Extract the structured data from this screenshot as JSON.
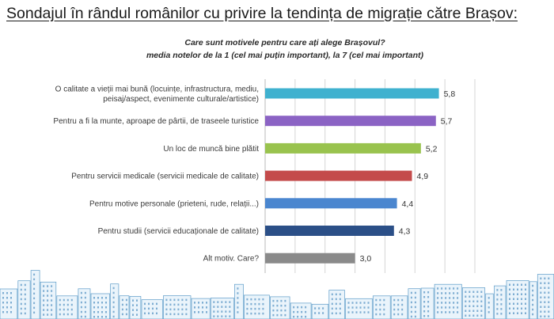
{
  "page_title": "Sondajul în rândul românilor cu privire la tendința de migrație către Brașov:",
  "chart_data": {
    "type": "bar",
    "orientation": "horizontal",
    "title_line1": "Care sunt motivele pentru care ați alege Brașovul?",
    "title_line2": "media notelor de la 1 (cel mai puțin important), la 7 (cel mai important)",
    "categories": [
      [
        "O calitate a vieții mai bună (locuințe, infrastructura, mediu,",
        "peisaj/aspect, evenimente culturale/artistice)"
      ],
      [
        "Pentru a fi la munte, aproape de pârtii, de traseele turistice"
      ],
      [
        "Un loc de muncă bine plătit"
      ],
      [
        "Pentru servicii medicale (servicii medicale de calitate)"
      ],
      [
        "Pentru motive personale (prieteni, rude, relații...)"
      ],
      [
        "Pentru studii (servicii educaționale de calitate)"
      ],
      [
        "Alt motiv. Care?"
      ]
    ],
    "values": [
      5.8,
      5.7,
      5.2,
      4.9,
      4.4,
      4.3,
      3.0
    ],
    "value_labels": [
      "5,8",
      "5,7",
      "5,2",
      "4,9",
      "4,4",
      "4,3",
      "3,0"
    ],
    "bar_colors": [
      "#3fb1cf",
      "#8b63c4",
      "#99c34e",
      "#c44b4b",
      "#4a86cf",
      "#2b4f87",
      "#8a8a8a"
    ],
    "xlim": [
      0,
      7
    ],
    "grid": "vertical",
    "legend": "none"
  }
}
